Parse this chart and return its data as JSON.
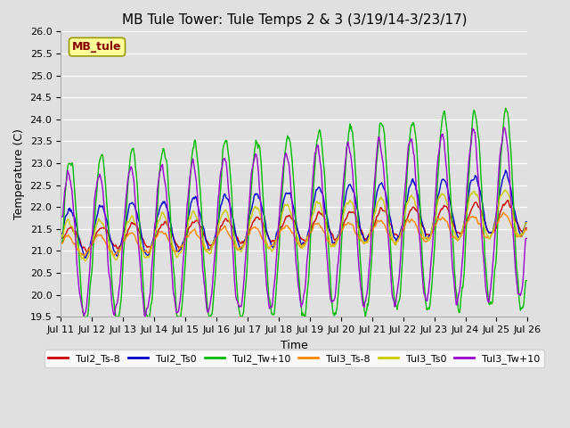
{
  "title": "MB Tule Tower: Tule Temps 2 & 3 (3/19/14-3/23/17)",
  "xlabel": "Time",
  "ylabel": "Temperature (C)",
  "xlim": [
    0,
    15
  ],
  "ylim": [
    19.5,
    26.0
  ],
  "xtick_labels": [
    "Jul 11",
    "Jul 12",
    "Jul 13",
    "Jul 14",
    "Jul 15",
    "Jul 16",
    "Jul 17",
    "Jul 18",
    "Jul 19",
    "Jul 20",
    "Jul 21",
    "Jul 22",
    "Jul 23",
    "Jul 24",
    "Jul 25",
    "Jul 26"
  ],
  "legend_labels": [
    "Tul2_Ts-8",
    "Tul2_Ts0",
    "Tul2_Tw+10",
    "Tul3_Ts-8",
    "Tul3_Ts0",
    "Tul3_Tw+10"
  ],
  "legend_colors": [
    "#cc0000",
    "#0000cc",
    "#00bb00",
    "#ff8800",
    "#cccc00",
    "#9900cc"
  ],
  "background_color": "#e0e0e0",
  "grid_color": "#ffffff",
  "annotation_text": "MB_tule",
  "annotation_color": "#880000",
  "annotation_bg": "#ffff99",
  "line_width": 1.0,
  "title_fontsize": 11,
  "tick_fontsize": 8,
  "legend_fontsize": 8
}
